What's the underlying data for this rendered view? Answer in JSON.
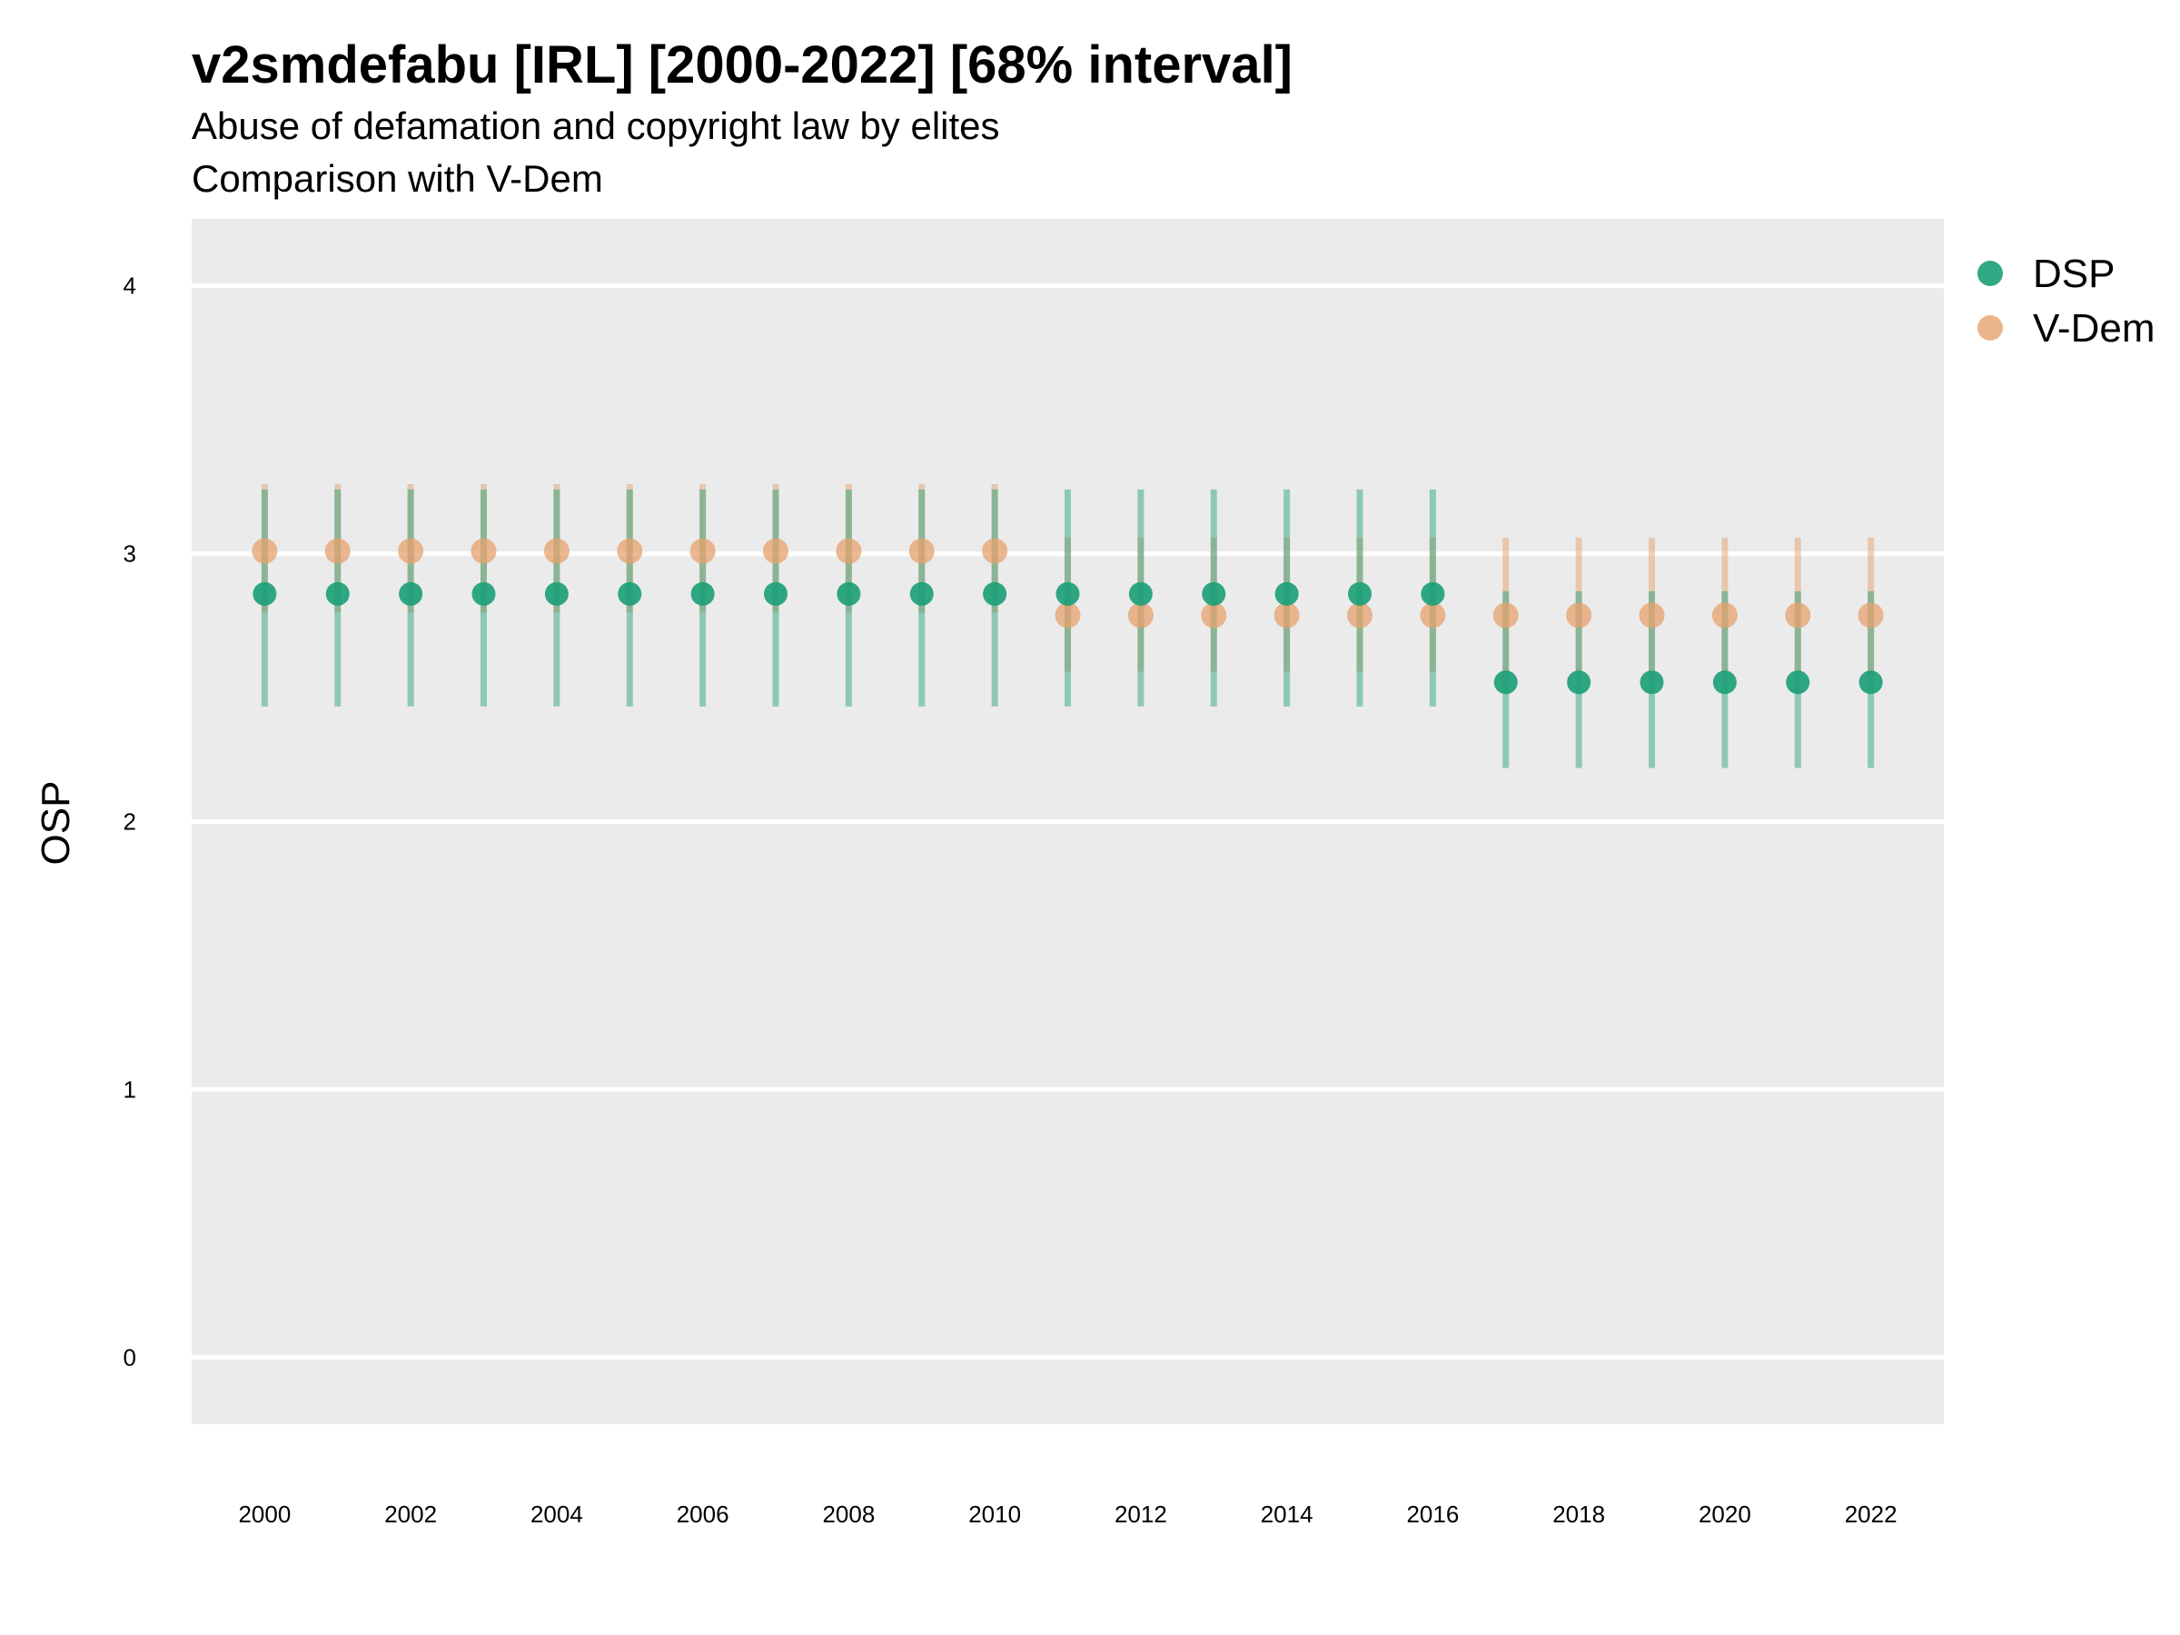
{
  "chart_data": {
    "type": "scatter",
    "title": "v2smdefabu [IRL] [2000-2022] [68% interval]",
    "subtitle": [
      "Abuse of defamation and copyright law by elites",
      "Comparison with V-Dem"
    ],
    "ylabel": "OSP",
    "xlabel": "",
    "ylim": [
      -0.25,
      4.25
    ],
    "xlim": [
      1999.0,
      2023.0
    ],
    "y_ticks": [
      0,
      1,
      2,
      3,
      4
    ],
    "x_ticks": [
      2000,
      2002,
      2004,
      2006,
      2008,
      2010,
      2012,
      2014,
      2016,
      2018,
      2020,
      2022
    ],
    "grid": "horizontal",
    "legend_position": "top-right",
    "x": [
      2000,
      2001,
      2002,
      2003,
      2004,
      2005,
      2006,
      2007,
      2008,
      2009,
      2010,
      2011,
      2012,
      2013,
      2014,
      2015,
      2016,
      2017,
      2018,
      2019,
      2020,
      2021,
      2022
    ],
    "series": [
      {
        "name": "DSP",
        "color": "#1b9e77",
        "values": [
          2.85,
          2.85,
          2.85,
          2.85,
          2.85,
          2.85,
          2.85,
          2.85,
          2.85,
          2.85,
          2.85,
          2.85,
          2.85,
          2.85,
          2.85,
          2.85,
          2.85,
          2.52,
          2.52,
          2.52,
          2.52,
          2.52,
          2.52
        ],
        "lower": [
          2.43,
          2.43,
          2.43,
          2.43,
          2.43,
          2.43,
          2.43,
          2.43,
          2.43,
          2.43,
          2.43,
          2.43,
          2.43,
          2.43,
          2.43,
          2.43,
          2.43,
          2.2,
          2.2,
          2.2,
          2.2,
          2.2,
          2.2
        ],
        "upper": [
          3.24,
          3.24,
          3.24,
          3.24,
          3.24,
          3.24,
          3.24,
          3.24,
          3.24,
          3.24,
          3.24,
          3.24,
          3.24,
          3.24,
          3.24,
          3.24,
          3.24,
          2.86,
          2.86,
          2.86,
          2.86,
          2.86,
          2.86
        ]
      },
      {
        "name": "V-Dem",
        "color": "#e6a26e",
        "values": [
          3.01,
          3.01,
          3.01,
          3.01,
          3.01,
          3.01,
          3.01,
          3.01,
          3.01,
          3.01,
          3.01,
          2.77,
          2.77,
          2.77,
          2.77,
          2.77,
          2.77,
          2.77,
          2.77,
          2.77,
          2.77,
          2.77,
          2.77
        ],
        "lower": [
          2.78,
          2.78,
          2.78,
          2.78,
          2.78,
          2.78,
          2.78,
          2.78,
          2.78,
          2.78,
          2.78,
          2.56,
          2.56,
          2.56,
          2.56,
          2.56,
          2.56,
          2.56,
          2.56,
          2.56,
          2.56,
          2.56,
          2.56
        ],
        "upper": [
          3.26,
          3.26,
          3.26,
          3.26,
          3.26,
          3.26,
          3.26,
          3.26,
          3.26,
          3.26,
          3.26,
          3.06,
          3.06,
          3.06,
          3.06,
          3.06,
          3.06,
          3.06,
          3.06,
          3.06,
          3.06,
          3.06,
          3.06
        ]
      }
    ]
  }
}
